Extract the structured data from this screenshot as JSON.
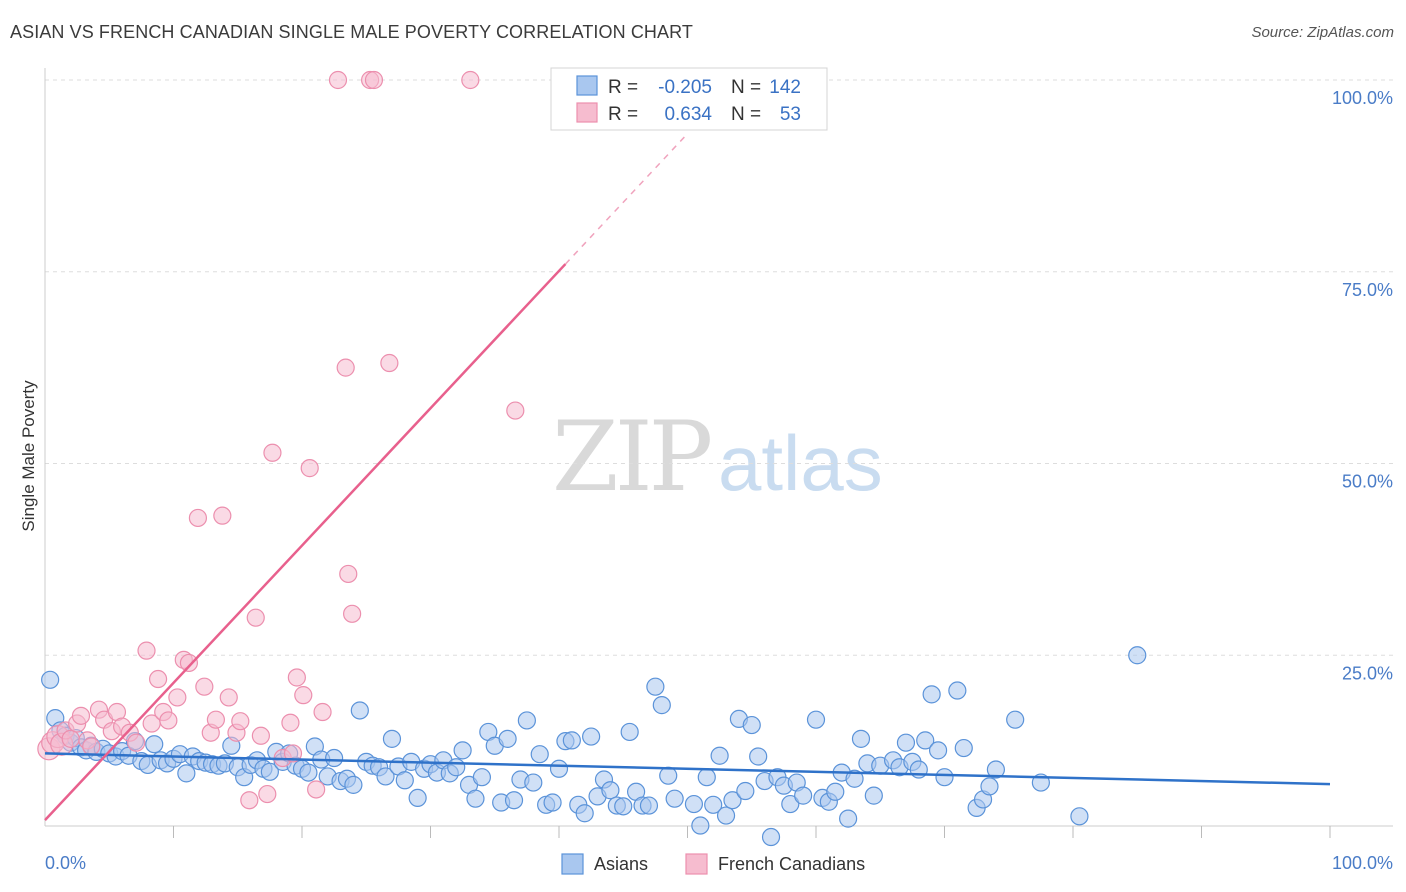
{
  "title": "ASIAN VS FRENCH CANADIAN SINGLE MALE POVERTY CORRELATION CHART",
  "source": "Source: ZipAtlas.com",
  "watermark": {
    "zip": "ZIP",
    "atlas": "atlas"
  },
  "colors": {
    "asian_fill": "#a9c7ef",
    "asian_stroke": "#5b93d9",
    "asian_line": "#2f72c9",
    "french_fill": "#f6bccf",
    "french_stroke": "#ec8fae",
    "french_line": "#e8608d",
    "grid": "#dddddd",
    "axis_text": "#4a7cc7"
  },
  "stats_box": {
    "rows": [
      {
        "r_label": "R =",
        "r_value": "-0.205",
        "n_label": "N =",
        "n_value": "142"
      },
      {
        "r_label": "R =",
        "r_value": "0.634",
        "n_label": "N =",
        "n_value": "53"
      }
    ]
  },
  "legend": {
    "asian": "Asians",
    "french": "French Canadians"
  },
  "chart_data": {
    "type": "scatter",
    "title": "ASIAN VS FRENCH CANADIAN SINGLE MALE POVERTY CORRELATION CHART",
    "xlabel": "",
    "ylabel": "Single Male Poverty",
    "xlim": [
      0,
      100
    ],
    "ylim": [
      0,
      100
    ],
    "x_tick_labels": [
      "0.0%",
      "100.0%"
    ],
    "y_tick_values": [
      25,
      50,
      75,
      100
    ],
    "y_tick_labels": [
      "25.0%",
      "50.0%",
      "75.0%",
      "100.0%"
    ],
    "grid": true,
    "legend_position": "bottom-center",
    "series": [
      {
        "name": "Asians",
        "r": -0.205,
        "n": 142,
        "trend": {
          "x0": 0,
          "y0": 12.2,
          "x1": 100,
          "y1": 8.2
        },
        "points": [
          [
            0.4,
            21.8
          ],
          [
            0.8,
            16.8
          ],
          [
            1.2,
            15.2
          ],
          [
            1.6,
            14.5
          ],
          [
            2.0,
            13.6
          ],
          [
            2.4,
            14.2
          ],
          [
            2.8,
            13.0
          ],
          [
            3.2,
            12.6
          ],
          [
            3.6,
            13.2
          ],
          [
            4.0,
            12.4
          ],
          [
            4.5,
            12.8
          ],
          [
            5.0,
            12.2
          ],
          [
            5.5,
            11.8
          ],
          [
            6.0,
            12.5
          ],
          [
            6.5,
            11.9
          ],
          [
            7.0,
            13.8
          ],
          [
            7.5,
            11.2
          ],
          [
            8.0,
            10.7
          ],
          [
            8.5,
            13.4
          ],
          [
            9.0,
            11.3
          ],
          [
            9.5,
            10.9
          ],
          [
            10.0,
            11.5
          ],
          [
            10.5,
            12.1
          ],
          [
            11.0,
            9.6
          ],
          [
            11.5,
            11.8
          ],
          [
            12.0,
            11.2
          ],
          [
            12.5,
            11.0
          ],
          [
            13.0,
            10.8
          ],
          [
            13.5,
            10.6
          ],
          [
            14.0,
            10.9
          ],
          [
            14.5,
            13.2
          ],
          [
            15.0,
            10.4
          ],
          [
            15.5,
            9.1
          ],
          [
            16.0,
            10.7
          ],
          [
            16.5,
            11.3
          ],
          [
            17.0,
            10.2
          ],
          [
            17.5,
            9.8
          ],
          [
            18.0,
            12.4
          ],
          [
            18.5,
            11.1
          ],
          [
            19.0,
            12.2
          ],
          [
            19.5,
            10.6
          ],
          [
            20.0,
            10.2
          ],
          [
            20.5,
            9.7
          ],
          [
            21.0,
            13.1
          ],
          [
            21.5,
            11.4
          ],
          [
            22.0,
            9.2
          ],
          [
            22.5,
            11.6
          ],
          [
            23.0,
            8.6
          ],
          [
            23.5,
            8.9
          ],
          [
            24.0,
            8.1
          ],
          [
            24.5,
            17.8
          ],
          [
            25.0,
            11.1
          ],
          [
            25.5,
            10.6
          ],
          [
            26.0,
            10.4
          ],
          [
            26.5,
            9.2
          ],
          [
            27.0,
            14.1
          ],
          [
            27.5,
            10.5
          ],
          [
            28.0,
            8.7
          ],
          [
            28.5,
            11.1
          ],
          [
            29.0,
            6.4
          ],
          [
            29.5,
            10.2
          ],
          [
            30.0,
            10.8
          ],
          [
            30.5,
            9.7
          ],
          [
            31.0,
            11.3
          ],
          [
            31.5,
            9.6
          ],
          [
            32.0,
            10.4
          ],
          [
            32.5,
            12.6
          ],
          [
            33.0,
            8.1
          ],
          [
            33.5,
            6.3
          ],
          [
            34.0,
            9.1
          ],
          [
            34.5,
            15.0
          ],
          [
            35.0,
            13.2
          ],
          [
            35.5,
            5.8
          ],
          [
            36.0,
            14.1
          ],
          [
            36.5,
            6.1
          ],
          [
            37.0,
            8.8
          ],
          [
            37.5,
            16.5
          ],
          [
            38.0,
            8.4
          ],
          [
            38.5,
            12.1
          ],
          [
            39.0,
            5.5
          ],
          [
            39.5,
            5.8
          ],
          [
            40.0,
            10.2
          ],
          [
            40.5,
            13.8
          ],
          [
            41.0,
            13.9
          ],
          [
            41.5,
            5.5
          ],
          [
            42.0,
            4.4
          ],
          [
            42.5,
            14.4
          ],
          [
            43.0,
            6.6
          ],
          [
            43.5,
            8.8
          ],
          [
            44.0,
            7.4
          ],
          [
            44.5,
            5.4
          ],
          [
            45.0,
            5.3
          ],
          [
            45.5,
            15.0
          ],
          [
            46.0,
            7.2
          ],
          [
            46.5,
            5.4
          ],
          [
            47.0,
            5.4
          ],
          [
            47.5,
            20.9
          ],
          [
            48.0,
            18.5
          ],
          [
            48.5,
            9.3
          ],
          [
            49.0,
            6.3
          ],
          [
            50.5,
            5.6
          ],
          [
            51.0,
            2.8
          ],
          [
            51.5,
            9.1
          ],
          [
            52.0,
            5.5
          ],
          [
            52.5,
            11.9
          ],
          [
            53.0,
            4.1
          ],
          [
            53.5,
            6.1
          ],
          [
            54.0,
            16.7
          ],
          [
            54.5,
            7.3
          ],
          [
            55.0,
            15.9
          ],
          [
            55.5,
            11.8
          ],
          [
            56.0,
            8.6
          ],
          [
            56.5,
            1.3
          ],
          [
            57.0,
            9.1
          ],
          [
            57.5,
            8.0
          ],
          [
            58.0,
            5.6
          ],
          [
            58.5,
            8.4
          ],
          [
            59.0,
            6.7
          ],
          [
            60.0,
            16.6
          ],
          [
            60.5,
            6.4
          ],
          [
            61.0,
            5.9
          ],
          [
            61.5,
            7.2
          ],
          [
            62.0,
            9.7
          ],
          [
            62.5,
            3.7
          ],
          [
            63.0,
            8.9
          ],
          [
            63.5,
            14.1
          ],
          [
            64.0,
            10.9
          ],
          [
            64.5,
            6.7
          ],
          [
            65.0,
            10.6
          ],
          [
            66.0,
            11.3
          ],
          [
            66.5,
            10.4
          ],
          [
            67.0,
            13.6
          ],
          [
            67.5,
            11.1
          ],
          [
            68.0,
            10.1
          ],
          [
            68.5,
            13.9
          ],
          [
            69.0,
            19.9
          ],
          [
            69.5,
            12.6
          ],
          [
            70.0,
            9.1
          ],
          [
            71.0,
            20.4
          ],
          [
            71.5,
            12.9
          ],
          [
            72.5,
            5.1
          ],
          [
            73.0,
            6.2
          ],
          [
            73.5,
            7.9
          ],
          [
            74.0,
            10.1
          ],
          [
            75.5,
            16.6
          ],
          [
            77.5,
            8.4
          ],
          [
            80.5,
            4.0
          ],
          [
            85.0,
            25.0
          ]
        ]
      },
      {
        "name": "French Canadians",
        "r": 0.634,
        "n": 53,
        "trend": {
          "x0": 0,
          "y0": 3.5,
          "x1": 40.5,
          "y1": 76.0
        },
        "trend_dashed": {
          "x0": 40.5,
          "y0": 76.0,
          "x1": 50.0,
          "y1": 93.0
        },
        "points": [
          [
            0.3,
            12.8
          ],
          [
            0.6,
            13.6
          ],
          [
            1.0,
            14.4
          ],
          [
            1.3,
            13.4
          ],
          [
            1.6,
            15.2
          ],
          [
            2.0,
            14.1
          ],
          [
            2.5,
            16.1
          ],
          [
            2.8,
            17.1
          ],
          [
            3.3,
            13.9
          ],
          [
            3.6,
            13.1
          ],
          [
            4.2,
            17.9
          ],
          [
            4.6,
            16.6
          ],
          [
            5.2,
            15.1
          ],
          [
            5.6,
            17.6
          ],
          [
            6.0,
            15.7
          ],
          [
            6.6,
            14.9
          ],
          [
            7.1,
            13.6
          ],
          [
            7.9,
            25.6
          ],
          [
            8.3,
            16.1
          ],
          [
            8.8,
            21.9
          ],
          [
            9.2,
            17.6
          ],
          [
            9.6,
            16.5
          ],
          [
            10.3,
            19.5
          ],
          [
            10.8,
            24.4
          ],
          [
            11.2,
            24.0
          ],
          [
            11.9,
            42.9
          ],
          [
            12.4,
            20.9
          ],
          [
            12.9,
            14.9
          ],
          [
            13.3,
            16.6
          ],
          [
            13.8,
            43.2
          ],
          [
            14.3,
            19.5
          ],
          [
            14.9,
            14.9
          ],
          [
            15.2,
            16.4
          ],
          [
            15.9,
            6.1
          ],
          [
            16.4,
            29.9
          ],
          [
            16.8,
            14.5
          ],
          [
            17.3,
            6.9
          ],
          [
            17.7,
            51.4
          ],
          [
            18.5,
            11.6
          ],
          [
            19.1,
            16.2
          ],
          [
            19.3,
            12.2
          ],
          [
            19.6,
            22.1
          ],
          [
            20.1,
            19.8
          ],
          [
            20.6,
            49.4
          ],
          [
            21.1,
            7.5
          ],
          [
            21.6,
            17.6
          ],
          [
            22.8,
            100.0
          ],
          [
            23.4,
            62.5
          ],
          [
            23.6,
            35.6
          ],
          [
            23.9,
            30.4
          ],
          [
            25.3,
            100.0
          ],
          [
            25.6,
            100.0
          ],
          [
            26.8,
            63.1
          ],
          [
            33.1,
            100.0
          ],
          [
            36.6,
            56.9
          ]
        ]
      }
    ]
  }
}
